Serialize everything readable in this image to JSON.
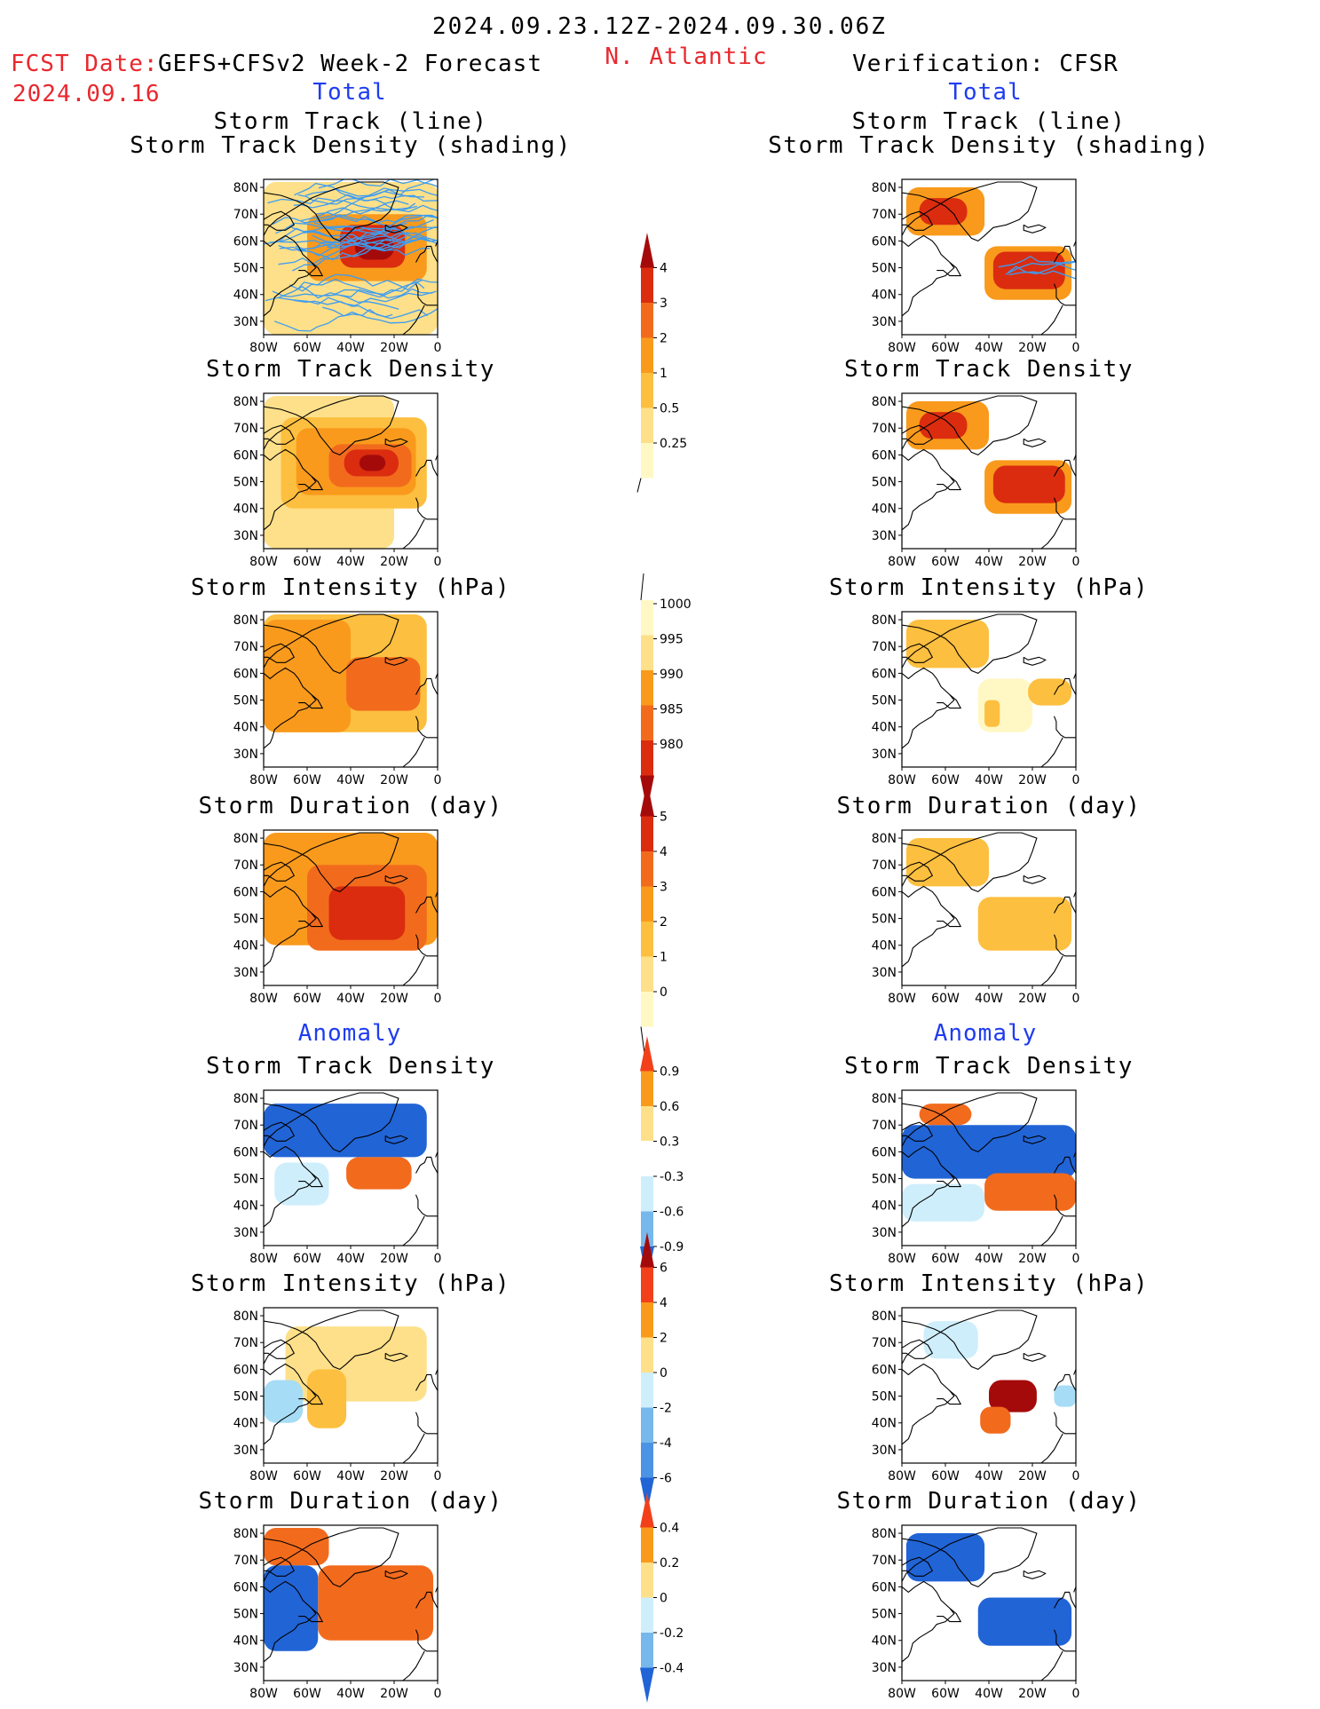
{
  "header": {
    "title": "2024.09.23.12Z-2024.09.30.06Z",
    "fcst_label": "FCST Date:",
    "fcst_model": "GEFS+CFSv2 Week-2 Forecast",
    "fcst_date": "2024.09.16",
    "region": "N. Atlantic",
    "verification": "Verification: CFSR"
  },
  "sections": {
    "total_label": "Total",
    "anomaly_label": "Anomaly"
  },
  "axis_ticks": {
    "lat": [
      "80N",
      "70N",
      "60N",
      "50N",
      "40N",
      "30N"
    ],
    "lon": [
      "80W",
      "60W",
      "40W",
      "20W",
      "0"
    ]
  },
  "colors": {
    "warm": [
      "#fff8c4",
      "#fee08a",
      "#fdbf3f",
      "#f99a1c",
      "#f26b1d",
      "#db2c0f",
      "#a50a0a"
    ],
    "cool": [
      "#ffffff",
      "#cfeefc",
      "#a6dcf5",
      "#76b8ec",
      "#4b93e4",
      "#2164d6"
    ],
    "track_line": "#3d9cf0",
    "track_line_obs": "#3d9cf0"
  },
  "colorbars": [
    {
      "name": "total-density-colorbar",
      "labels": [
        "4",
        "3",
        "2",
        "1",
        "0.5",
        "0.25"
      ]
    },
    {
      "name": "total-intensity-colorbar",
      "labels": [
        "1000",
        "995",
        "990",
        "985",
        "980"
      ]
    },
    {
      "name": "total-duration-colorbar",
      "labels": [
        "5",
        "4",
        "3",
        "2",
        "1",
        "0"
      ]
    },
    {
      "name": "anomaly-density-colorbar",
      "labels": [
        "0.9",
        "0.6",
        "0.3",
        "-0.3",
        "-0.6",
        "-0.9"
      ]
    },
    {
      "name": "anomaly-intensity-colorbar",
      "labels": [
        "6",
        "4",
        "2",
        "0",
        "-2",
        "-4",
        "-6"
      ]
    },
    {
      "name": "anomaly-duration-colorbar",
      "labels": [
        "0.4",
        "0.2",
        "0",
        "-0.2",
        "-0.4"
      ]
    }
  ],
  "chart_data": [
    {
      "type": "heatmap",
      "column": "forecast",
      "section": "total",
      "title_lines": [
        "Storm Track (line)",
        "Storm Track Density (shading)"
      ],
      "variable": "storm_track_density_with_tracks",
      "regions": [
        {
          "lon": [
            -80,
            0
          ],
          "lat": [
            25,
            82
          ],
          "level": 1
        },
        {
          "lon": [
            -60,
            -5
          ],
          "lat": [
            45,
            70
          ],
          "level": 3
        },
        {
          "lon": [
            -45,
            -15
          ],
          "lat": [
            50,
            66
          ],
          "level": 5
        },
        {
          "lon": [
            -38,
            -20
          ],
          "lat": [
            53,
            62
          ],
          "level": 6
        }
      ]
    },
    {
      "type": "heatmap",
      "column": "forecast",
      "section": "total",
      "title_lines": [
        "Storm Track Density"
      ],
      "variable": "storm_track_density",
      "regions": [
        {
          "lon": [
            -80,
            -20
          ],
          "lat": [
            25,
            82
          ],
          "level": 1
        },
        {
          "lon": [
            -72,
            -5
          ],
          "lat": [
            40,
            74
          ],
          "level": 2
        },
        {
          "lon": [
            -65,
            -10
          ],
          "lat": [
            45,
            70
          ],
          "level": 3
        },
        {
          "lon": [
            -50,
            -12
          ],
          "lat": [
            48,
            64
          ],
          "level": 4
        },
        {
          "lon": [
            -43,
            -18
          ],
          "lat": [
            52,
            62
          ],
          "level": 5
        },
        {
          "lon": [
            -36,
            -24
          ],
          "lat": [
            54,
            60
          ],
          "level": 6
        }
      ]
    },
    {
      "type": "heatmap",
      "column": "forecast",
      "section": "total",
      "title_lines": [
        "Storm Intensity (hPa)"
      ],
      "variable": "storm_intensity",
      "regions": [
        {
          "lon": [
            -80,
            -5
          ],
          "lat": [
            38,
            82
          ],
          "level": 2
        },
        {
          "lon": [
            -80,
            -40
          ],
          "lat": [
            38,
            80
          ],
          "level": 3
        },
        {
          "lon": [
            -42,
            -8
          ],
          "lat": [
            46,
            66
          ],
          "level": 4
        }
      ]
    },
    {
      "type": "heatmap",
      "column": "forecast",
      "section": "total",
      "title_lines": [
        "Storm Duration (day)"
      ],
      "variable": "storm_duration",
      "regions": [
        {
          "lon": [
            -80,
            0
          ],
          "lat": [
            40,
            82
          ],
          "level": 3
        },
        {
          "lon": [
            -60,
            -5
          ],
          "lat": [
            38,
            70
          ],
          "level": 4
        },
        {
          "lon": [
            -50,
            -15
          ],
          "lat": [
            42,
            62
          ],
          "level": 5
        }
      ]
    },
    {
      "type": "heatmap",
      "column": "verification",
      "section": "total",
      "title_lines": [
        "Storm Track (line)",
        "Storm Track Density (shading)"
      ],
      "variable": "storm_track_density_with_tracks",
      "regions": [
        {
          "lon": [
            -78,
            -42
          ],
          "lat": [
            62,
            80
          ],
          "level": 3
        },
        {
          "lon": [
            -72,
            -50
          ],
          "lat": [
            66,
            76
          ],
          "level": 5
        },
        {
          "lon": [
            -42,
            -2
          ],
          "lat": [
            38,
            58
          ],
          "level": 3
        },
        {
          "lon": [
            -38,
            -5
          ],
          "lat": [
            42,
            56
          ],
          "level": 5
        }
      ]
    },
    {
      "type": "heatmap",
      "column": "verification",
      "section": "total",
      "title_lines": [
        "Storm Track Density"
      ],
      "variable": "storm_track_density",
      "regions": [
        {
          "lon": [
            -78,
            -40
          ],
          "lat": [
            62,
            80
          ],
          "level": 3
        },
        {
          "lon": [
            -72,
            -50
          ],
          "lat": [
            66,
            76
          ],
          "level": 5
        },
        {
          "lon": [
            -42,
            -2
          ],
          "lat": [
            38,
            58
          ],
          "level": 3
        },
        {
          "lon": [
            -38,
            -5
          ],
          "lat": [
            42,
            56
          ],
          "level": 5
        }
      ]
    },
    {
      "type": "heatmap",
      "column": "verification",
      "section": "total",
      "title_lines": [
        "Storm Intensity (hPa)"
      ],
      "variable": "storm_intensity",
      "regions": [
        {
          "lon": [
            -78,
            -40
          ],
          "lat": [
            62,
            80
          ],
          "level": 2
        },
        {
          "lon": [
            -45,
            -20
          ],
          "lat": [
            38,
            58
          ],
          "level": 0
        },
        {
          "lon": [
            -22,
            -2
          ],
          "lat": [
            48,
            58
          ],
          "level": 2
        },
        {
          "lon": [
            -42,
            -35
          ],
          "lat": [
            40,
            50
          ],
          "level": 2
        }
      ]
    },
    {
      "type": "heatmap",
      "column": "verification",
      "section": "total",
      "title_lines": [
        "Storm Duration (day)"
      ],
      "variable": "storm_duration",
      "regions": [
        {
          "lon": [
            -78,
            -40
          ],
          "lat": [
            62,
            80
          ],
          "level": 2
        },
        {
          "lon": [
            -45,
            -2
          ],
          "lat": [
            38,
            58
          ],
          "level": 2
        }
      ]
    },
    {
      "type": "heatmap",
      "column": "forecast",
      "section": "anomaly",
      "title_lines": [
        "Storm Track Density"
      ],
      "variable": "storm_track_density_anomaly",
      "regions": [
        {
          "lon": [
            -80,
            -5
          ],
          "lat": [
            58,
            78
          ],
          "cool_level": 5
        },
        {
          "lon": [
            -42,
            -12
          ],
          "lat": [
            46,
            58
          ],
          "warm_level": 4
        },
        {
          "lon": [
            -75,
            -50
          ],
          "lat": [
            40,
            56
          ],
          "cool_level": 1
        }
      ]
    },
    {
      "type": "heatmap",
      "column": "forecast",
      "section": "anomaly",
      "title_lines": [
        "Storm Intensity (hPa)"
      ],
      "variable": "storm_intensity_anomaly",
      "regions": [
        {
          "lon": [
            -70,
            -5
          ],
          "lat": [
            48,
            76
          ],
          "warm_level": 1
        },
        {
          "lon": [
            -60,
            -42
          ],
          "lat": [
            38,
            60
          ],
          "warm_level": 2
        },
        {
          "lon": [
            -80,
            -62
          ],
          "lat": [
            40,
            56
          ],
          "cool_level": 2
        }
      ]
    },
    {
      "type": "heatmap",
      "column": "forecast",
      "section": "anomaly",
      "title_lines": [
        "Storm Duration (day)"
      ],
      "variable": "storm_duration_anomaly",
      "regions": [
        {
          "lon": [
            -80,
            -50
          ],
          "lat": [
            68,
            82
          ],
          "warm_level": 4
        },
        {
          "lon": [
            -55,
            -2
          ],
          "lat": [
            40,
            68
          ],
          "warm_level": 4
        },
        {
          "lon": [
            -80,
            -55
          ],
          "lat": [
            36,
            68
          ],
          "cool_level": 5
        }
      ]
    },
    {
      "type": "heatmap",
      "column": "verification",
      "section": "anomaly",
      "title_lines": [
        "Storm Track Density"
      ],
      "variable": "storm_track_density_anomaly",
      "regions": [
        {
          "lon": [
            -80,
            0
          ],
          "lat": [
            50,
            70
          ],
          "cool_level": 5
        },
        {
          "lon": [
            -72,
            -48
          ],
          "lat": [
            70,
            78
          ],
          "warm_level": 4
        },
        {
          "lon": [
            -42,
            0
          ],
          "lat": [
            38,
            52
          ],
          "warm_level": 4
        },
        {
          "lon": [
            -80,
            -42
          ],
          "lat": [
            34,
            48
          ],
          "cool_level": 1
        }
      ]
    },
    {
      "type": "heatmap",
      "column": "verification",
      "section": "anomaly",
      "title_lines": [
        "Storm Intensity (hPa)"
      ],
      "variable": "storm_intensity_anomaly",
      "regions": [
        {
          "lon": [
            -70,
            -45
          ],
          "lat": [
            64,
            78
          ],
          "cool_level": 1
        },
        {
          "lon": [
            -40,
            -18
          ],
          "lat": [
            44,
            56
          ],
          "warm_level": 6
        },
        {
          "lon": [
            -44,
            -30
          ],
          "lat": [
            36,
            46
          ],
          "warm_level": 4
        },
        {
          "lon": [
            -10,
            0
          ],
          "lat": [
            46,
            54
          ],
          "cool_level": 2
        }
      ]
    },
    {
      "type": "heatmap",
      "column": "verification",
      "section": "anomaly",
      "title_lines": [
        "Storm Duration (day)"
      ],
      "variable": "storm_duration_anomaly",
      "regions": [
        {
          "lon": [
            -78,
            -42
          ],
          "lat": [
            62,
            80
          ],
          "cool_level": 5
        },
        {
          "lon": [
            -45,
            -2
          ],
          "lat": [
            38,
            56
          ],
          "cool_level": 5
        }
      ]
    }
  ]
}
